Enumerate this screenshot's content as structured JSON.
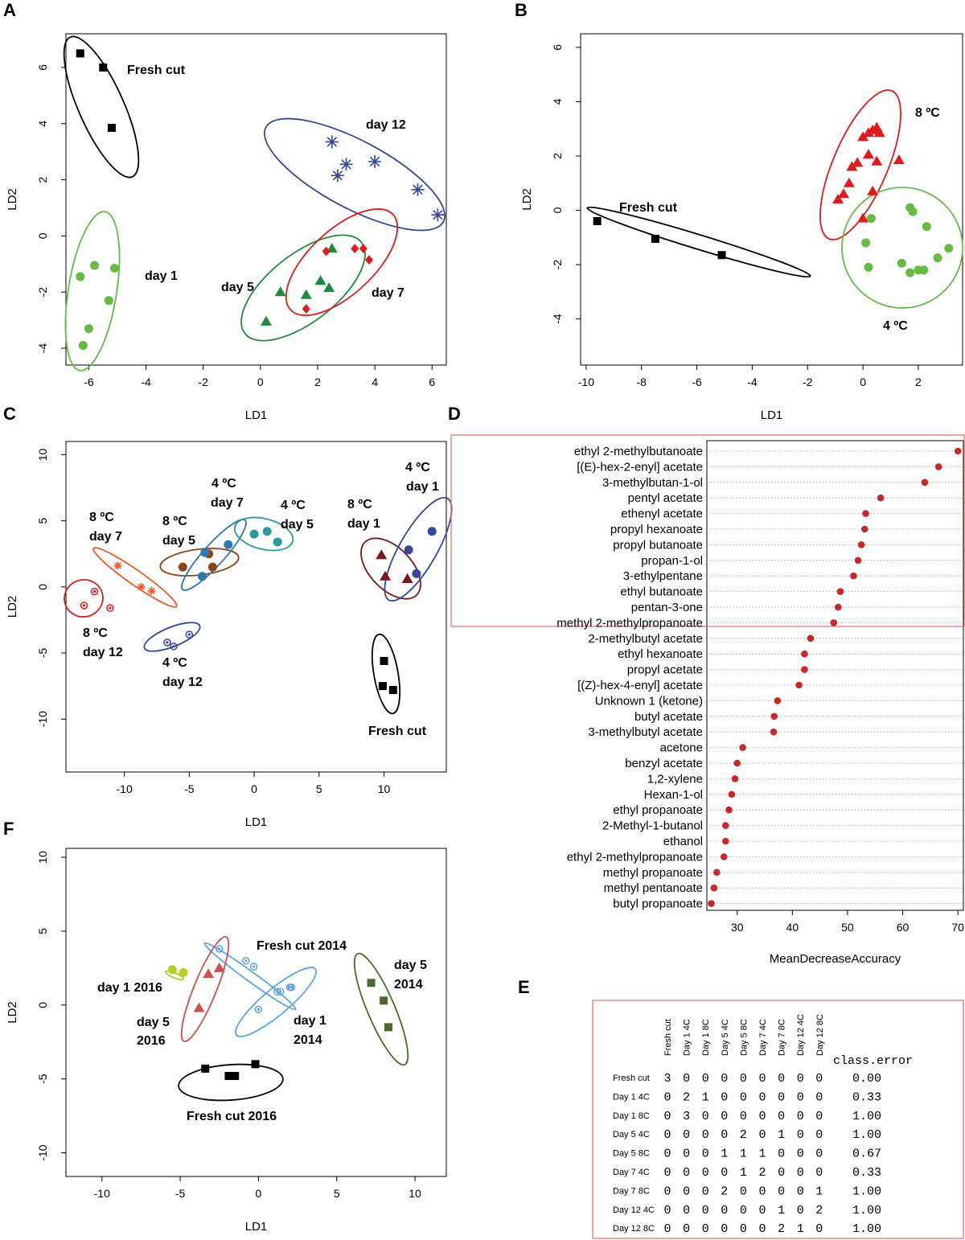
{
  "panels": {
    "A": "A",
    "B": "B",
    "C": "C",
    "D": "D",
    "E": "E",
    "F": "F"
  },
  "colors": {
    "black": "#000000",
    "green": "#66bb44",
    "blue": "#34479a",
    "red": "#e31a1c",
    "darkgreen": "#1e8a3e",
    "teal": "#2a9aa0",
    "brown": "#8b4513",
    "orange": "#f05a24",
    "crimson": "#7a1818",
    "lightblue": "#5aa6e0",
    "olive": "#4c6a2a",
    "lime": "#b6cc2a",
    "rose": "#d05050",
    "dotred": "#c8282a"
  },
  "chart_data": [
    {
      "id": "A",
      "type": "scatter",
      "xlabel": "LD1",
      "ylabel": "LD2",
      "xlim": [
        -6.8,
        6.5
      ],
      "ylim": [
        -4.6,
        7.2
      ],
      "xticks": [
        -6,
        -4,
        -2,
        0,
        2,
        4,
        6
      ],
      "yticks": [
        -4,
        -2,
        0,
        2,
        4,
        6
      ],
      "groups": [
        {
          "label": "Fresh cut",
          "color": "#000000",
          "marker": "square",
          "points": [
            [
              -6.3,
              6.5
            ],
            [
              -5.5,
              6.0
            ],
            [
              -5.2,
              3.85
            ]
          ]
        },
        {
          "label": "day 1",
          "color": "#66bb44",
          "marker": "circle",
          "points": [
            [
              -6.3,
              -1.45
            ],
            [
              -5.8,
              -1.05
            ],
            [
              -5.1,
              -1.15
            ],
            [
              -5.3,
              -2.3
            ],
            [
              -6.0,
              -3.3
            ],
            [
              -6.2,
              -3.9
            ]
          ]
        },
        {
          "label": "day 12",
          "color": "#34479a",
          "marker": "star",
          "points": [
            [
              2.5,
              3.35
            ],
            [
              3.0,
              2.55
            ],
            [
              4.0,
              2.65
            ],
            [
              2.7,
              2.15
            ],
            [
              5.5,
              1.65
            ],
            [
              6.2,
              0.75
            ]
          ]
        },
        {
          "label": "day 5",
          "color": "#1e8a3e",
          "marker": "triangle",
          "points": [
            [
              2.5,
              -0.45
            ],
            [
              0.7,
              -2.0
            ],
            [
              2.1,
              -1.6
            ],
            [
              1.6,
              -2.1
            ],
            [
              2.4,
              -1.85
            ],
            [
              0.2,
              -3.05
            ]
          ]
        },
        {
          "label": "day 7",
          "color": "#e31a1c",
          "marker": "diamond",
          "points": [
            [
              2.3,
              -0.55
            ],
            [
              3.3,
              -0.45
            ],
            [
              3.6,
              -0.45
            ],
            [
              3.8,
              -0.85
            ],
            [
              1.6,
              -2.6
            ]
          ]
        }
      ]
    },
    {
      "id": "B",
      "type": "scatter",
      "xlabel": "LD1",
      "ylabel": "LD2",
      "xlim": [
        -10.2,
        3.6
      ],
      "ylim": [
        -5.7,
        6.5
      ],
      "xticks": [
        -10,
        -8,
        -6,
        -4,
        -2,
        0,
        2
      ],
      "yticks": [
        -4,
        -2,
        0,
        2,
        4,
        6
      ],
      "groups": [
        {
          "label": "Fresh cut",
          "color": "#000000",
          "marker": "square",
          "points": [
            [
              -9.6,
              -0.4
            ],
            [
              -7.5,
              -1.05
            ],
            [
              -5.1,
              -1.65
            ]
          ]
        },
        {
          "label": "8 ºC",
          "color": "#e31a1c",
          "marker": "triangle",
          "points": [
            [
              -0.9,
              0.4
            ],
            [
              -0.7,
              0.6
            ],
            [
              -0.5,
              1.0
            ],
            [
              -0.4,
              1.6
            ],
            [
              -0.2,
              1.75
            ],
            [
              0.0,
              2.7
            ],
            [
              0.2,
              2.85
            ],
            [
              0.35,
              2.95
            ],
            [
              0.5,
              3.05
            ],
            [
              0.6,
              2.85
            ],
            [
              0.2,
              2.05
            ],
            [
              0.5,
              1.8
            ],
            [
              1.3,
              1.85
            ],
            [
              0.35,
              0.7
            ],
            [
              0.0,
              -0.3
            ]
          ]
        },
        {
          "label": "4 ºC",
          "color": "#66bb44",
          "marker": "circle",
          "points": [
            [
              0.3,
              -0.3
            ],
            [
              1.7,
              0.1
            ],
            [
              1.8,
              -0.05
            ],
            [
              2.3,
              -0.6
            ],
            [
              0.1,
              -1.2
            ],
            [
              0.2,
              -2.1
            ],
            [
              1.4,
              -1.95
            ],
            [
              1.7,
              -2.3
            ],
            [
              2.0,
              -2.2
            ],
            [
              2.2,
              -2.2
            ],
            [
              2.7,
              -1.75
            ],
            [
              3.1,
              -1.4
            ]
          ]
        }
      ]
    },
    {
      "id": "C",
      "type": "scatter",
      "xlabel": "LD1",
      "ylabel": "LD2",
      "xlim": [
        -14.5,
        14.8
      ],
      "ylim": [
        -14.0,
        11.0
      ],
      "xticks": [
        -10,
        -5,
        0,
        5,
        10
      ],
      "yticks": [
        -10,
        -5,
        0,
        5,
        10
      ],
      "groups": [
        {
          "label": "8 ºC day 12",
          "color": "#e31a1c",
          "marker": "circle-open",
          "points": [
            [
              -13.1,
              -1.4
            ],
            [
              -12.3,
              -0.35
            ],
            [
              -11.1,
              -1.6
            ]
          ]
        },
        {
          "label": "8 ºC day 7",
          "color": "#f05a24",
          "marker": "asterisk",
          "points": [
            [
              -10.5,
              1.6
            ],
            [
              -8.7,
              0.0
            ],
            [
              -7.9,
              -0.3
            ]
          ]
        },
        {
          "label": "8 ºC day 5",
          "color": "#8b4513",
          "marker": "circle",
          "points": [
            [
              -5.5,
              1.5
            ],
            [
              -3.5,
              2.5
            ],
            [
              -3.2,
              1.5
            ]
          ]
        },
        {
          "label": "4 ºC day 7",
          "color": "#2a7ab0",
          "marker": "circle",
          "points": [
            [
              -3.8,
              2.6
            ],
            [
              -2.0,
              3.2
            ],
            [
              -4.0,
              0.8
            ]
          ]
        },
        {
          "label": "4 ºC day 5",
          "color": "#2a9aa0",
          "marker": "circle",
          "points": [
            [
              0.0,
              4.0
            ],
            [
              1.0,
              4.2
            ],
            [
              1.8,
              3.4
            ]
          ]
        },
        {
          "label": "4 ºC day 12",
          "color": "#34479a",
          "marker": "circle-open",
          "points": [
            [
              -6.7,
              -4.2
            ],
            [
              -6.2,
              -4.5
            ],
            [
              -5.0,
              -3.6
            ]
          ]
        },
        {
          "label": "8 ºC day 1",
          "color": "#7a1818",
          "marker": "triangle",
          "points": [
            [
              9.8,
              2.4
            ],
            [
              10.1,
              0.8
            ],
            [
              11.8,
              0.6
            ]
          ]
        },
        {
          "label": "4 ºC day 1",
          "color": "#34479a",
          "marker": "circle",
          "points": [
            [
              11.9,
              2.8
            ],
            [
              12.5,
              1.0
            ],
            [
              13.7,
              4.2
            ]
          ]
        },
        {
          "label": "Fresh cut",
          "color": "#000000",
          "marker": "square",
          "points": [
            [
              10.0,
              -5.6
            ],
            [
              9.9,
              -7.5
            ],
            [
              10.7,
              -7.8
            ]
          ]
        }
      ]
    },
    {
      "id": "D",
      "type": "dot",
      "xlabel": "MeanDecreaseAccuracy",
      "xlim": [
        24.5,
        71.0
      ],
      "xticks": [
        30,
        40,
        50,
        60,
        70
      ],
      "highlight_top_n": 12,
      "items": [
        {
          "label": "ethyl 2-methylbutanoate",
          "value": 70.0
        },
        {
          "label": "[(E)-hex-2-enyl] acetate",
          "value": 66.5
        },
        {
          "label": "3-methylbutan-1-ol",
          "value": 64.0
        },
        {
          "label": "pentyl acetate",
          "value": 56.0
        },
        {
          "label": "ethenyl acetate",
          "value": 53.3
        },
        {
          "label": "propyl hexanoate",
          "value": 53.1
        },
        {
          "label": "propyl butanoate",
          "value": 52.5
        },
        {
          "label": "propan-1-ol",
          "value": 51.9
        },
        {
          "label": "3-ethylpentane",
          "value": 51.1
        },
        {
          "label": "ethyl butanoate",
          "value": 48.7
        },
        {
          "label": "pentan-3-one",
          "value": 48.3
        },
        {
          "label": "methyl 2-methylpropanoate",
          "value": 47.5
        },
        {
          "label": "2-methylbutyl acetate",
          "value": 43.3
        },
        {
          "label": "ethyl hexanoate",
          "value": 42.2
        },
        {
          "label": "propyl acetate",
          "value": 42.2
        },
        {
          "label": "[(Z)-hex-4-enyl] acetate",
          "value": 41.2
        },
        {
          "label": "Unknown 1 (ketone)",
          "value": 37.3
        },
        {
          "label": "butyl acetate",
          "value": 36.7
        },
        {
          "label": "3-methylbutyl acetate",
          "value": 36.6
        },
        {
          "label": "acetone",
          "value": 31.0
        },
        {
          "label": "benzyl acetate",
          "value": 30.0
        },
        {
          "label": "1,2-xylene",
          "value": 29.6
        },
        {
          "label": "Hexan-1-ol",
          "value": 29.0
        },
        {
          "label": "ethyl propanoate",
          "value": 28.5
        },
        {
          "label": "2-Methyl-1-butanol",
          "value": 27.9
        },
        {
          "label": "ethanol",
          "value": 27.9
        },
        {
          "label": "ethyl 2-methylpropanoate",
          "value": 27.6
        },
        {
          "label": "methyl propanoate",
          "value": 26.3
        },
        {
          "label": "methyl pentanoate",
          "value": 25.8
        },
        {
          "label": "butyl propanoate",
          "value": 25.3
        }
      ]
    },
    {
      "id": "E",
      "type": "table",
      "columns": [
        "Fresh cut",
        "Day 1 4C",
        "Day 1 8C",
        "Day 5 4C",
        "Day 5 8C",
        "Day 7 4C",
        "Day 7 8C",
        "Day 12 4C",
        "Day 12 8C"
      ],
      "error_header": "class.error",
      "rows": [
        {
          "label": "Fresh cut",
          "cells": [
            "3",
            "0",
            "0",
            "0",
            "0",
            "0",
            "0",
            "0",
            "0"
          ],
          "error": "0.00"
        },
        {
          "label": "Day 1 4C",
          "cells": [
            "0",
            "2",
            "1",
            "0",
            "0",
            "0",
            "0",
            "0",
            "0"
          ],
          "error": "0.33"
        },
        {
          "label": "Day 1 8C",
          "cells": [
            "0",
            "3",
            "0",
            "0",
            "0",
            "0",
            "0",
            "0",
            "0"
          ],
          "error": "1.00"
        },
        {
          "label": "Day 5 4C",
          "cells": [
            "0",
            "0",
            "0",
            "0",
            "2",
            "0",
            "1",
            "0",
            "0"
          ],
          "error": "1.00"
        },
        {
          "label": "Day 5 8C",
          "cells": [
            "0",
            "0",
            "0",
            "1",
            "1",
            "1",
            "0",
            "0",
            "0"
          ],
          "error": "0.67"
        },
        {
          "label": "Day 7 4C",
          "cells": [
            "0",
            "0",
            "0",
            "0",
            "1",
            "2",
            "0",
            "0",
            "0"
          ],
          "error": "0.33"
        },
        {
          "label": "Day 7 8C",
          "cells": [
            "0",
            "0",
            "0",
            "2",
            "0",
            "0",
            "0",
            "0",
            "1"
          ],
          "error": "1.00"
        },
        {
          "label": "Day 12 4C",
          "cells": [
            "0",
            "0",
            "0",
            "0",
            "0",
            "0",
            "1",
            "0",
            "2"
          ],
          "error": "1.00"
        },
        {
          "label": "Day 12 8C",
          "cells": [
            "0",
            "0",
            "0",
            "0",
            "0",
            "0",
            "2",
            "1",
            "0"
          ],
          "error": "1.00"
        }
      ]
    },
    {
      "id": "F",
      "type": "scatter",
      "xlabel": "LD1",
      "ylabel": "LD2",
      "xlim": [
        -12.3,
        12.0
      ],
      "ylim": [
        -11.6,
        10.6
      ],
      "xticks": [
        -10,
        -5,
        0,
        5,
        10
      ],
      "yticks": [
        -10,
        -5,
        0,
        5,
        10
      ],
      "groups": [
        {
          "label": "Fresh cut 2014",
          "color": "#5aa6e0",
          "marker": "circle-open",
          "points": [
            [
              -2.5,
              3.8
            ],
            [
              -0.8,
              3.0
            ],
            [
              -0.3,
              2.6
            ],
            [
              1.4,
              0.9
            ],
            [
              2.1,
              1.2
            ]
          ]
        },
        {
          "label": "day 1 2016",
          "color": "#b6cc2a",
          "marker": "circle",
          "points": [
            [
              -5.5,
              2.4
            ],
            [
              -4.8,
              2.2
            ]
          ]
        },
        {
          "label": "day 5 2016",
          "color": "#d05050",
          "marker": "triangle",
          "points": [
            [
              -3.2,
              2.1
            ],
            [
              -2.5,
              2.5
            ],
            [
              -3.8,
              -0.2
            ]
          ]
        },
        {
          "label": "day 1 2014",
          "color": "#5aa6e0",
          "marker": "circle-open",
          "points": [
            [
              1.2,
              0.9
            ],
            [
              2.0,
              1.2
            ],
            [
              0.0,
              -0.3
            ]
          ]
        },
        {
          "label": "day 5 2014",
          "color": "#4c6a2a",
          "marker": "square",
          "points": [
            [
              7.2,
              1.5
            ],
            [
              8.0,
              0.3
            ],
            [
              8.3,
              -1.5
            ]
          ]
        },
        {
          "label": "Fresh cut 2016",
          "color": "#000000",
          "marker": "square",
          "points": [
            [
              -3.4,
              -4.3
            ],
            [
              -1.9,
              -4.8
            ],
            [
              -1.5,
              -4.8
            ],
            [
              -0.2,
              -4.0
            ]
          ]
        }
      ]
    }
  ],
  "annotations": {
    "A": {
      "fresh": "Fresh cut",
      "day12": "day 12",
      "day1": "day 1",
      "day5": "day 5",
      "day7": "day 7"
    },
    "B": {
      "fresh": "Fresh cut",
      "c8": "8 ºC",
      "c4": "4 ºC"
    },
    "C": {
      "c4d1a": "4 ºC",
      "c4d1b": "day 1",
      "c8d1a": "8 ºC",
      "c8d1b": "day 1",
      "c4d7a": "4 ºC",
      "c4d7b": "day 7",
      "c4d5a": "4 ºC",
      "c4d5b": "day 5",
      "c8d5a": "8 ºC",
      "c8d5b": "day 5",
      "c8d7a": "8 ºC",
      "c8d7b": "day 7",
      "c8d12a": "8 ºC",
      "c8d12b": "day 12",
      "c4d12a": "4 ºC",
      "c4d12b": "day 12",
      "fresh": "Fresh cut"
    },
    "F": {
      "fc2014": "Fresh cut 2014",
      "d5_2014a": "day 5",
      "d5_2014b": "2014",
      "d1_2016": "day 1 2016",
      "d5_2016a": "day 5",
      "d5_2016b": "2016",
      "d1_2014a": "day 1",
      "d1_2014b": "2014",
      "fc2016": "Fresh cut 2016"
    }
  }
}
